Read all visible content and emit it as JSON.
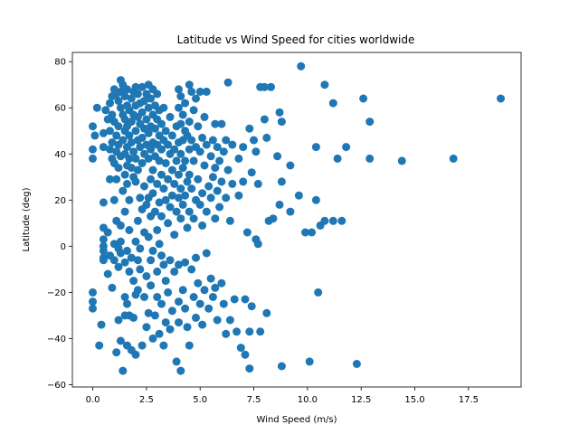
{
  "chart_data": {
    "type": "scatter",
    "title": "Latitude vs Wind Speed for cities worldwide",
    "xlabel": "Wind Speed (m/s)",
    "ylabel": "Latitude (deg)",
    "xlim": [
      -0.95,
      19.95
    ],
    "ylim": [
      -61,
      84
    ],
    "xticks": [
      0.0,
      2.5,
      5.0,
      7.5,
      10.0,
      12.5,
      15.0,
      17.5
    ],
    "xtick_labels": [
      "0.0",
      "2.5",
      "5.0",
      "7.5",
      "10.0",
      "12.5",
      "15.0",
      "17.5"
    ],
    "yticks": [
      -60,
      -40,
      -20,
      0,
      20,
      40,
      60,
      80
    ],
    "ytick_labels": [
      "−60",
      "−40",
      "−20",
      "0",
      "20",
      "40",
      "60",
      "80"
    ],
    "grid": false,
    "marker_color": "#1f77b4",
    "points": [
      [
        0.0,
        52
      ],
      [
        0.0,
        42
      ],
      [
        0.0,
        38
      ],
      [
        0.0,
        -20
      ],
      [
        0.0,
        -24
      ],
      [
        0.0,
        -27
      ],
      [
        0.1,
        48
      ],
      [
        0.2,
        60
      ],
      [
        0.3,
        -43
      ],
      [
        0.4,
        -34
      ],
      [
        0.5,
        49
      ],
      [
        0.5,
        43
      ],
      [
        0.5,
        19
      ],
      [
        0.5,
        8
      ],
      [
        0.5,
        3
      ],
      [
        0.5,
        0
      ],
      [
        0.5,
        -2
      ],
      [
        0.5,
        -5
      ],
      [
        0.5,
        -6
      ],
      [
        0.6,
        59
      ],
      [
        0.7,
        55
      ],
      [
        0.7,
        6
      ],
      [
        0.7,
        -12
      ],
      [
        0.8,
        62
      ],
      [
        0.8,
        50
      ],
      [
        0.8,
        42
      ],
      [
        0.8,
        29
      ],
      [
        0.8,
        -4
      ],
      [
        0.9,
        65
      ],
      [
        0.9,
        57
      ],
      [
        0.9,
        45
      ],
      [
        0.9,
        38
      ],
      [
        0.9,
        -18
      ],
      [
        1.0,
        68
      ],
      [
        1.0,
        54
      ],
      [
        1.0,
        36
      ],
      [
        1.0,
        20
      ],
      [
        1.0,
        1
      ],
      [
        1.0,
        -6
      ],
      [
        1.1,
        66
      ],
      [
        1.1,
        48
      ],
      [
        1.1,
        41
      ],
      [
        1.1,
        29
      ],
      [
        1.1,
        11
      ],
      [
        1.1,
        -46
      ],
      [
        1.2,
        63
      ],
      [
        1.2,
        52
      ],
      [
        1.2,
        44
      ],
      [
        1.2,
        34
      ],
      [
        1.2,
        -1
      ],
      [
        1.2,
        -9
      ],
      [
        1.2,
        -32
      ],
      [
        1.3,
        72
      ],
      [
        1.3,
        67
      ],
      [
        1.3,
        60
      ],
      [
        1.3,
        39
      ],
      [
        1.3,
        9
      ],
      [
        1.3,
        2
      ],
      [
        1.3,
        -3
      ],
      [
        1.3,
        -41
      ],
      [
        1.4,
        70
      ],
      [
        1.4,
        57
      ],
      [
        1.4,
        46
      ],
      [
        1.4,
        24
      ],
      [
        1.4,
        -54
      ],
      [
        1.5,
        65
      ],
      [
        1.5,
        55
      ],
      [
        1.5,
        50
      ],
      [
        1.5,
        40
      ],
      [
        1.5,
        31
      ],
      [
        1.5,
        15
      ],
      [
        1.5,
        -7
      ],
      [
        1.5,
        -22
      ],
      [
        1.5,
        -30
      ],
      [
        1.6,
        68
      ],
      [
        1.6,
        61
      ],
      [
        1.6,
        52
      ],
      [
        1.6,
        43
      ],
      [
        1.6,
        35
      ],
      [
        1.6,
        27
      ],
      [
        1.6,
        -2
      ],
      [
        1.6,
        -25
      ],
      [
        1.6,
        -43
      ],
      [
        1.7,
        59
      ],
      [
        1.7,
        48
      ],
      [
        1.7,
        38
      ],
      [
        1.7,
        20
      ],
      [
        1.7,
        7
      ],
      [
        1.7,
        -11
      ],
      [
        1.7,
        -30
      ],
      [
        1.8,
        64
      ],
      [
        1.8,
        54
      ],
      [
        1.8,
        45
      ],
      [
        1.8,
        34
      ],
      [
        1.8,
        -5
      ],
      [
        1.8,
        -45
      ],
      [
        1.9,
        67
      ],
      [
        1.9,
        57
      ],
      [
        1.9,
        41
      ],
      [
        1.9,
        30
      ],
      [
        1.9,
        -15
      ],
      [
        1.9,
        -31
      ],
      [
        2.0,
        69
      ],
      [
        2.0,
        61
      ],
      [
        2.0,
        50
      ],
      [
        2.0,
        38
      ],
      [
        2.0,
        28
      ],
      [
        2.0,
        2
      ],
      [
        2.0,
        -21
      ],
      [
        2.0,
        -47
      ],
      [
        2.1,
        66
      ],
      [
        2.1,
        56
      ],
      [
        2.1,
        46
      ],
      [
        2.1,
        33
      ],
      [
        2.1,
        11
      ],
      [
        2.1,
        -6
      ],
      [
        2.1,
        -19
      ],
      [
        2.2,
        62
      ],
      [
        2.2,
        53
      ],
      [
        2.2,
        43
      ],
      [
        2.2,
        21
      ],
      [
        2.2,
        -1
      ],
      [
        2.2,
        -10
      ],
      [
        2.3,
        69
      ],
      [
        2.3,
        58
      ],
      [
        2.3,
        47
      ],
      [
        2.3,
        36
      ],
      [
        2.3,
        16
      ],
      [
        2.3,
        -43
      ],
      [
        2.4,
        63
      ],
      [
        2.4,
        51
      ],
      [
        2.4,
        40
      ],
      [
        2.4,
        26
      ],
      [
        2.4,
        6
      ],
      [
        2.4,
        -22
      ],
      [
        2.5,
        66
      ],
      [
        2.5,
        55
      ],
      [
        2.5,
        44
      ],
      [
        2.5,
        18
      ],
      [
        2.5,
        -13
      ],
      [
        2.5,
        -35
      ],
      [
        2.6,
        70
      ],
      [
        2.6,
        60
      ],
      [
        2.6,
        49
      ],
      [
        2.6,
        38
      ],
      [
        2.6,
        21
      ],
      [
        2.6,
        4
      ],
      [
        2.6,
        -29
      ],
      [
        2.7,
        64
      ],
      [
        2.7,
        52
      ],
      [
        2.7,
        42
      ],
      [
        2.7,
        29
      ],
      [
        2.7,
        13
      ],
      [
        2.7,
        -6
      ],
      [
        2.7,
        -17
      ],
      [
        2.8,
        68
      ],
      [
        2.8,
        57
      ],
      [
        2.8,
        45
      ],
      [
        2.8,
        33
      ],
      [
        2.8,
        23
      ],
      [
        2.8,
        -2
      ],
      [
        2.8,
        -40
      ],
      [
        2.9,
        61
      ],
      [
        2.9,
        51
      ],
      [
        2.9,
        39
      ],
      [
        2.9,
        15
      ],
      [
        2.9,
        -30
      ],
      [
        3.0,
        66
      ],
      [
        3.0,
        55
      ],
      [
        3.0,
        44
      ],
      [
        3.0,
        27
      ],
      [
        3.0,
        7
      ],
      [
        3.0,
        -11
      ],
      [
        3.0,
        -22
      ],
      [
        3.1,
        59
      ],
      [
        3.1,
        48
      ],
      [
        3.1,
        37
      ],
      [
        3.1,
        19
      ],
      [
        3.1,
        1
      ],
      [
        3.1,
        -38
      ],
      [
        3.2,
        53
      ],
      [
        3.2,
        42
      ],
      [
        3.2,
        31
      ],
      [
        3.2,
        13
      ],
      [
        3.2,
        -4
      ],
      [
        3.2,
        -25
      ],
      [
        3.3,
        60
      ],
      [
        3.3,
        46
      ],
      [
        3.3,
        25
      ],
      [
        3.3,
        -8
      ],
      [
        3.3,
        -43
      ],
      [
        3.4,
        50
      ],
      [
        3.4,
        36
      ],
      [
        3.4,
        20
      ],
      [
        3.4,
        -15
      ],
      [
        3.4,
        -33
      ],
      [
        3.5,
        44
      ],
      [
        3.5,
        29
      ],
      [
        3.5,
        10
      ],
      [
        3.5,
        -20
      ],
      [
        3.6,
        56
      ],
      [
        3.6,
        40
      ],
      [
        3.6,
        17
      ],
      [
        3.6,
        -6
      ],
      [
        3.6,
        -36
      ],
      [
        3.7,
        48
      ],
      [
        3.7,
        33
      ],
      [
        3.7,
        22
      ],
      [
        3.7,
        -28
      ],
      [
        3.8,
        42
      ],
      [
        3.8,
        27
      ],
      [
        3.8,
        5
      ],
      [
        3.8,
        -11
      ],
      [
        3.9,
        52
      ],
      [
        3.9,
        37
      ],
      [
        3.9,
        15
      ],
      [
        3.9,
        -50
      ],
      [
        4.0,
        68
      ],
      [
        4.0,
        60
      ],
      [
        4.0,
        45
      ],
      [
        4.0,
        31
      ],
      [
        4.0,
        21
      ],
      [
        4.0,
        -8
      ],
      [
        4.0,
        -24
      ],
      [
        4.0,
        -33
      ],
      [
        4.1,
        65
      ],
      [
        4.1,
        53
      ],
      [
        4.1,
        40
      ],
      [
        4.1,
        25
      ],
      [
        4.1,
        12
      ],
      [
        4.1,
        -54
      ],
      [
        4.2,
        57
      ],
      [
        4.2,
        46
      ],
      [
        4.2,
        34
      ],
      [
        4.2,
        18
      ],
      [
        4.2,
        -19
      ],
      [
        4.3,
        62
      ],
      [
        4.3,
        50
      ],
      [
        4.3,
        37
      ],
      [
        4.3,
        22
      ],
      [
        4.3,
        -7
      ],
      [
        4.3,
        -27
      ],
      [
        4.4,
        48
      ],
      [
        4.4,
        28
      ],
      [
        4.4,
        8
      ],
      [
        4.4,
        -35
      ],
      [
        4.5,
        70
      ],
      [
        4.5,
        54
      ],
      [
        4.5,
        42
      ],
      [
        4.5,
        31
      ],
      [
        4.5,
        15
      ],
      [
        4.5,
        -43
      ],
      [
        4.6,
        67
      ],
      [
        4.6,
        46
      ],
      [
        4.6,
        25
      ],
      [
        4.6,
        -10
      ],
      [
        4.7,
        59
      ],
      [
        4.7,
        37
      ],
      [
        4.7,
        12
      ],
      [
        4.7,
        -22
      ],
      [
        4.8,
        64
      ],
      [
        4.8,
        43
      ],
      [
        4.8,
        20
      ],
      [
        4.8,
        -5
      ],
      [
        4.8,
        -31
      ],
      [
        4.9,
        52
      ],
      [
        4.9,
        29
      ],
      [
        4.9,
        -16
      ],
      [
        5.0,
        67
      ],
      [
        5.0,
        41
      ],
      [
        5.0,
        18
      ],
      [
        5.0,
        -25
      ],
      [
        5.1,
        47
      ],
      [
        5.1,
        23
      ],
      [
        5.1,
        9
      ],
      [
        5.1,
        -34
      ],
      [
        5.2,
        56
      ],
      [
        5.2,
        35
      ],
      [
        5.2,
        -19
      ],
      [
        5.3,
        67
      ],
      [
        5.3,
        44
      ],
      [
        5.3,
        15
      ],
      [
        5.3,
        -3
      ],
      [
        5.4,
        26
      ],
      [
        5.4,
        -27
      ],
      [
        5.5,
        39
      ],
      [
        5.5,
        21
      ],
      [
        5.5,
        -14
      ],
      [
        5.6,
        46
      ],
      [
        5.6,
        30
      ],
      [
        5.6,
        -22
      ],
      [
        5.7,
        53
      ],
      [
        5.7,
        34
      ],
      [
        5.7,
        12
      ],
      [
        5.7,
        -18
      ],
      [
        5.8,
        43
      ],
      [
        5.8,
        24
      ],
      [
        5.8,
        -32
      ],
      [
        5.9,
        37
      ],
      [
        5.9,
        17
      ],
      [
        6.0,
        53
      ],
      [
        6.0,
        28
      ],
      [
        6.0,
        -16
      ],
      [
        6.1,
        41
      ],
      [
        6.1,
        -25
      ],
      [
        6.2,
        46
      ],
      [
        6.2,
        21
      ],
      [
        6.2,
        -38
      ],
      [
        6.3,
        71
      ],
      [
        6.3,
        33
      ],
      [
        6.4,
        11
      ],
      [
        6.4,
        -32
      ],
      [
        6.5,
        44
      ],
      [
        6.5,
        27
      ],
      [
        6.6,
        -23
      ],
      [
        6.7,
        -37
      ],
      [
        6.8,
        38
      ],
      [
        6.8,
        22
      ],
      [
        6.9,
        -44
      ],
      [
        7.0,
        43
      ],
      [
        7.0,
        28
      ],
      [
        7.1,
        -47
      ],
      [
        7.1,
        -23
      ],
      [
        7.2,
        6
      ],
      [
        7.3,
        -53
      ],
      [
        7.3,
        51
      ],
      [
        7.3,
        -37
      ],
      [
        7.4,
        32
      ],
      [
        7.4,
        -26
      ],
      [
        7.5,
        46
      ],
      [
        7.6,
        3
      ],
      [
        7.6,
        41
      ],
      [
        7.7,
        1
      ],
      [
        7.7,
        27
      ],
      [
        7.8,
        69
      ],
      [
        7.8,
        -37
      ],
      [
        8.0,
        69
      ],
      [
        8.0,
        55
      ],
      [
        8.1,
        47
      ],
      [
        8.1,
        -29
      ],
      [
        8.2,
        11
      ],
      [
        8.3,
        69
      ],
      [
        8.4,
        12
      ],
      [
        8.6,
        39
      ],
      [
        8.7,
        58
      ],
      [
        8.7,
        18
      ],
      [
        8.8,
        -52
      ],
      [
        8.8,
        54
      ],
      [
        8.8,
        28
      ],
      [
        9.2,
        35
      ],
      [
        9.2,
        15
      ],
      [
        9.6,
        22
      ],
      [
        9.7,
        78
      ],
      [
        9.9,
        6
      ],
      [
        10.1,
        -50
      ],
      [
        10.2,
        6
      ],
      [
        10.4,
        43
      ],
      [
        10.4,
        20
      ],
      [
        10.5,
        -20
      ],
      [
        10.6,
        9
      ],
      [
        10.8,
        70
      ],
      [
        10.8,
        11
      ],
      [
        11.2,
        62
      ],
      [
        11.2,
        11
      ],
      [
        11.4,
        38
      ],
      [
        11.6,
        11
      ],
      [
        11.8,
        43
      ],
      [
        12.3,
        -51
      ],
      [
        12.6,
        64
      ],
      [
        12.9,
        54
      ],
      [
        12.9,
        38
      ],
      [
        14.4,
        37
      ],
      [
        16.8,
        38
      ],
      [
        19.0,
        64
      ]
    ]
  }
}
